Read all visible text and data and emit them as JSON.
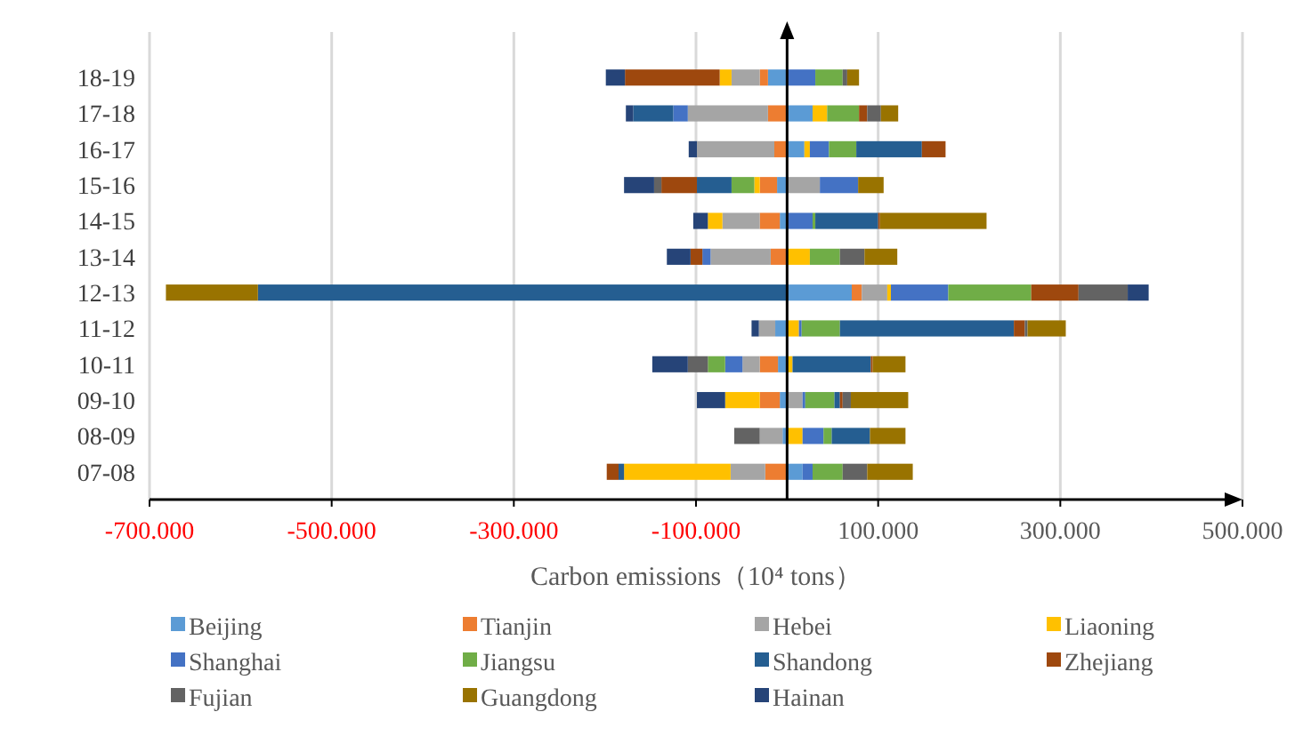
{
  "chart_data": {
    "type": "bar",
    "orientation": "horizontal",
    "stacked": true,
    "xlabel": "Carbon emissions（10⁴ tons）",
    "categories": [
      "18-19",
      "17-18",
      "16-17",
      "15-16",
      "14-15",
      "13-14",
      "12-13",
      "11-12",
      "10-11",
      "09-10",
      "08-09",
      "07-08"
    ],
    "xlim": [
      -700,
      500
    ],
    "xticks": [
      {
        "value": -700,
        "label": "-700.000"
      },
      {
        "value": -500,
        "label": "-500.000"
      },
      {
        "value": -300,
        "label": "-300.000"
      },
      {
        "value": -100,
        "label": "-100.000"
      },
      {
        "value": 100,
        "label": "100.000"
      },
      {
        "value": 300,
        "label": "300.000"
      },
      {
        "value": 500,
        "label": "500.000"
      }
    ],
    "grid": "x",
    "legend": "bottom",
    "series": [
      {
        "name": "Beijing",
        "color": "#5b9bd5",
        "values": [
          -21,
          28,
          19,
          -11,
          -8,
          null,
          71,
          -13,
          -10,
          -8,
          -5,
          17
        ]
      },
      {
        "name": "Tianjin",
        "color": "#ed7d31",
        "values": [
          -9,
          -21,
          -14,
          -19,
          -22,
          -18,
          11,
          0,
          -20,
          -22,
          0,
          -24
        ]
      },
      {
        "name": "Hebei",
        "color": "#a5a5a5",
        "values": [
          -31,
          -88,
          -85,
          36,
          -41,
          -66,
          28,
          -18,
          -19,
          17,
          -25,
          -38
        ]
      },
      {
        "name": "Liaoning",
        "color": "#ffc000",
        "values": [
          -13,
          16,
          6,
          -6,
          -16,
          25,
          4,
          13,
          6,
          -38,
          17,
          -117
        ]
      },
      {
        "name": "Shanghai",
        "color": "#4472c4",
        "values": [
          31,
          -16,
          21,
          42,
          28,
          -9,
          63,
          3,
          -19,
          3,
          23,
          11
        ]
      },
      {
        "name": "Jiangsu",
        "color": "#70ad47",
        "values": [
          30,
          35,
          30,
          -25,
          3,
          33,
          91,
          42,
          -19,
          32,
          9,
          33
        ]
      },
      {
        "name": "Shandong",
        "color": "#255e91",
        "values": [
          0,
          -44,
          72,
          -38,
          69,
          0,
          -581,
          191,
          86,
          6,
          42,
          -6
        ]
      },
      {
        "name": "Zhejiang",
        "color": "#9e480e",
        "values": [
          -104,
          9,
          26,
          -39,
          2,
          -13,
          52,
          12,
          2,
          3,
          0,
          -13
        ]
      },
      {
        "name": "Fujian",
        "color": "#636363",
        "values": [
          5,
          15,
          0,
          -8,
          0,
          27,
          54,
          3,
          -22,
          9,
          -28,
          27
        ]
      },
      {
        "name": "Guangdong",
        "color": "#997300",
        "values": [
          13,
          19,
          0,
          28,
          117,
          36,
          -101,
          42,
          36,
          63,
          39,
          50
        ]
      },
      {
        "name": "Hainan",
        "color": "#264478",
        "values": [
          -21,
          -8,
          -9,
          -33,
          -16,
          -26,
          23,
          -8,
          -39,
          -31,
          0,
          0
        ]
      }
    ]
  }
}
